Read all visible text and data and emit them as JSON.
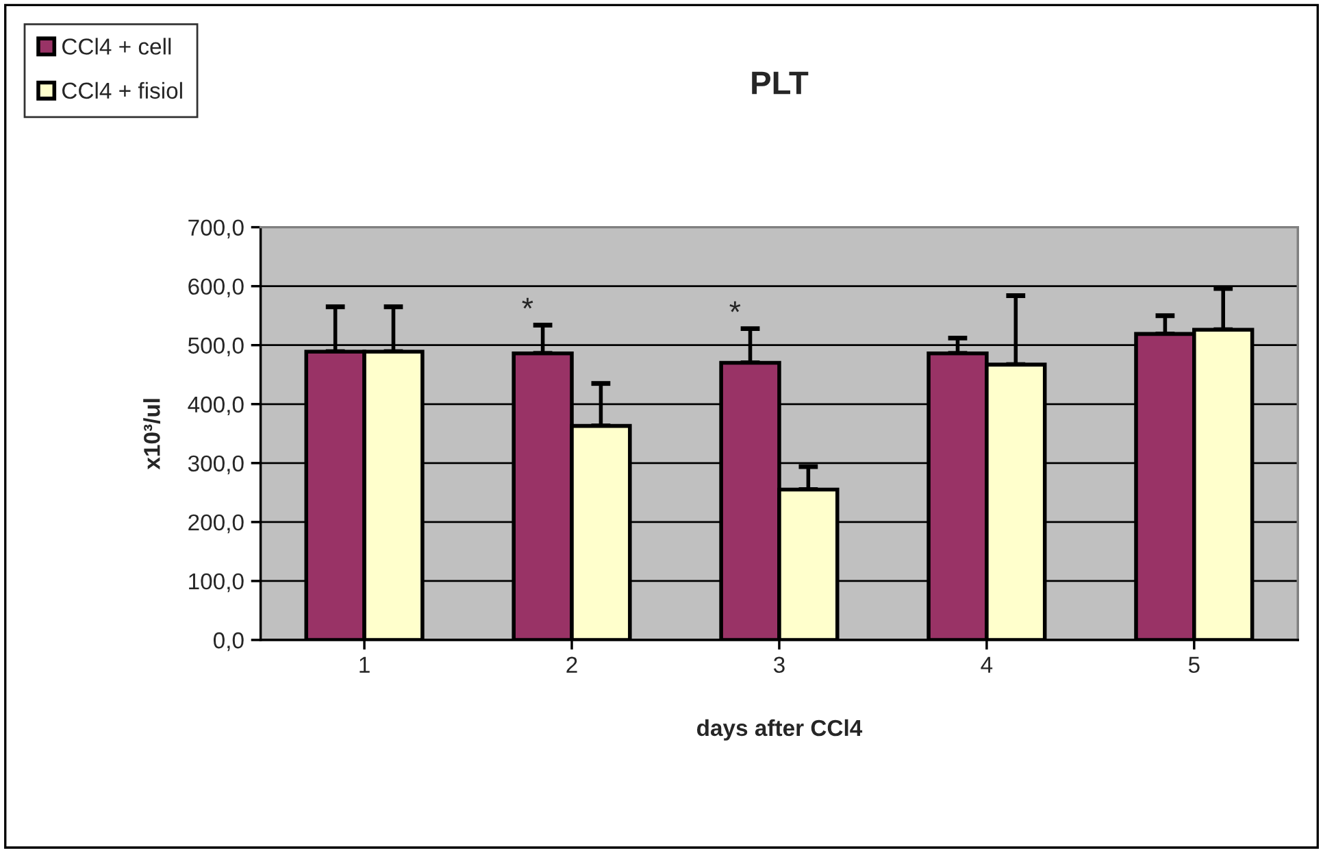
{
  "chart_data": {
    "type": "bar",
    "title": "PLT",
    "xlabel": "days after CCl4",
    "ylabel": "x10³/ul",
    "categories": [
      "1",
      "2",
      "3",
      "4",
      "5"
    ],
    "series": [
      {
        "name": "CCl4 + cell",
        "color": "#993366",
        "values": [
          489,
          486,
          470,
          486,
          519
        ],
        "errors": [
          [
            489,
            565
          ],
          [
            486,
            534
          ],
          [
            470,
            528
          ],
          [
            486,
            512
          ],
          [
            519,
            550
          ]
        ]
      },
      {
        "name": "CCl4 + fisiol",
        "color": "#ffffcc",
        "values": [
          489,
          363,
          255,
          467,
          526
        ],
        "errors": [
          [
            489,
            565
          ],
          [
            363,
            435
          ],
          [
            255,
            294
          ],
          [
            467,
            584
          ],
          [
            526,
            596
          ]
        ]
      }
    ],
    "ylim": [
      0,
      700
    ],
    "yticks": [
      {
        "value": 0,
        "label": "0,0"
      },
      {
        "value": 100,
        "label": "100,0"
      },
      {
        "value": 200,
        "label": "200,0"
      },
      {
        "value": 300,
        "label": "300,0"
      },
      {
        "value": 400,
        "label": "400,0"
      },
      {
        "value": 500,
        "label": "500,0"
      },
      {
        "value": 600,
        "label": "600,0"
      },
      {
        "value": 700,
        "label": "700,0"
      }
    ],
    "grid": "y",
    "legend": "top left",
    "annotations": [
      {
        "text": "*",
        "x": "2",
        "y": 486
      },
      {
        "text": "*",
        "x": "3",
        "y": 470
      }
    ]
  }
}
